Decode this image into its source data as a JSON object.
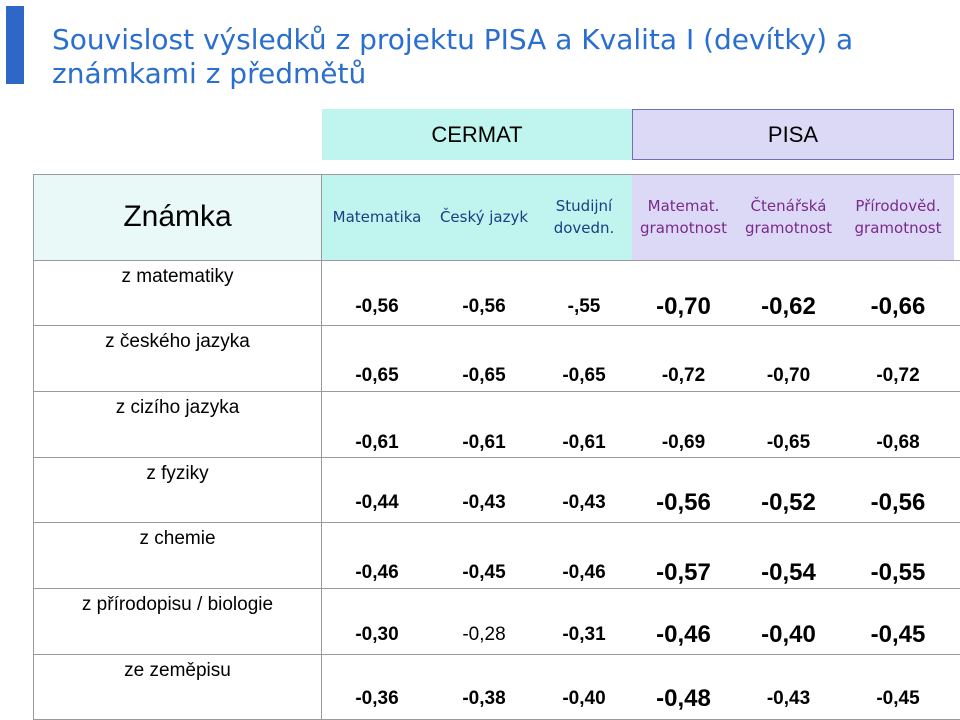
{
  "title": "Souvislost výsledků z projektu PISA a Kvalita I (devítky) a známkami z předmětů",
  "groups": {
    "cermat": "CERMAT",
    "pisa": "PISA"
  },
  "header": {
    "row_header": "Známka",
    "columns": [
      {
        "lines": [
          "Matematika"
        ],
        "group": "cermat"
      },
      {
        "lines": [
          "Český jazyk"
        ],
        "group": "cermat"
      },
      {
        "lines": [
          "Studijní",
          "dovedn."
        ],
        "group": "cermat"
      },
      {
        "lines": [
          "Matemat.",
          "gramotnost"
        ],
        "group": "pisa"
      },
      {
        "lines": [
          "Čtenářská",
          "gramotnost"
        ],
        "group": "pisa"
      },
      {
        "lines": [
          "Přírodověd.",
          "gramotnost"
        ],
        "group": "pisa"
      }
    ]
  },
  "rows": [
    {
      "label": "z matematiky",
      "values": [
        "-0,56",
        "-0,56",
        "-,55",
        "-0,70",
        "-0,62",
        "-0,66"
      ]
    },
    {
      "label": "z českého jazyka",
      "values": [
        "-0,65",
        "-0,65",
        "-0,65",
        "-0,72",
        "-0,70",
        "-0,72"
      ]
    },
    {
      "label": "z cizího jazyka",
      "values": [
        "-0,61",
        "-0,61",
        "-0,61",
        "-0,69",
        "-0,65",
        "-0,68"
      ]
    },
    {
      "label": "z fyziky",
      "values": [
        "-0,44",
        "-0,43",
        "-0,43",
        "-0,56",
        "-0,52",
        "-0,56"
      ]
    },
    {
      "label": "z chemie",
      "values": [
        "-0,46",
        "-0,45",
        "-0,46",
        "-0,57",
        "-0,54",
        "-0,55"
      ]
    },
    {
      "label": "z přírodopisu / biologie",
      "values": [
        "-0,30",
        "-0,28",
        "-0,31",
        "-0,46",
        "-0,40",
        "-0,45"
      ]
    },
    {
      "label": "ze zeměpisu",
      "values": [
        "-0,36",
        "-0,38",
        "-0,40",
        "-0,48",
        "-0,43",
        "-0,45"
      ]
    }
  ],
  "colors": {
    "title": "#2a6fcf",
    "accent_bar": "#2e67c7",
    "cermat_bg": "#bff5ee",
    "pisa_bg": "#dcd9f7",
    "cermat_text": "#1a3e82",
    "pisa_text": "#7a2a8a"
  }
}
